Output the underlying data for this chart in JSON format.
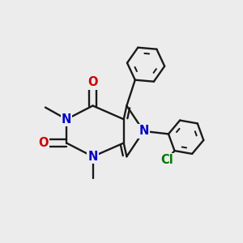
{
  "bg_color": "#ececec",
  "bond_color": "#1a1a1a",
  "N_color": "#0000cc",
  "O_color": "#cc0000",
  "Cl_color": "#007700",
  "lw": 1.7,
  "fs": 10.5,
  "xlim": [
    -1.05,
    1.4
  ],
  "ylim": [
    -1.15,
    1.35
  ]
}
